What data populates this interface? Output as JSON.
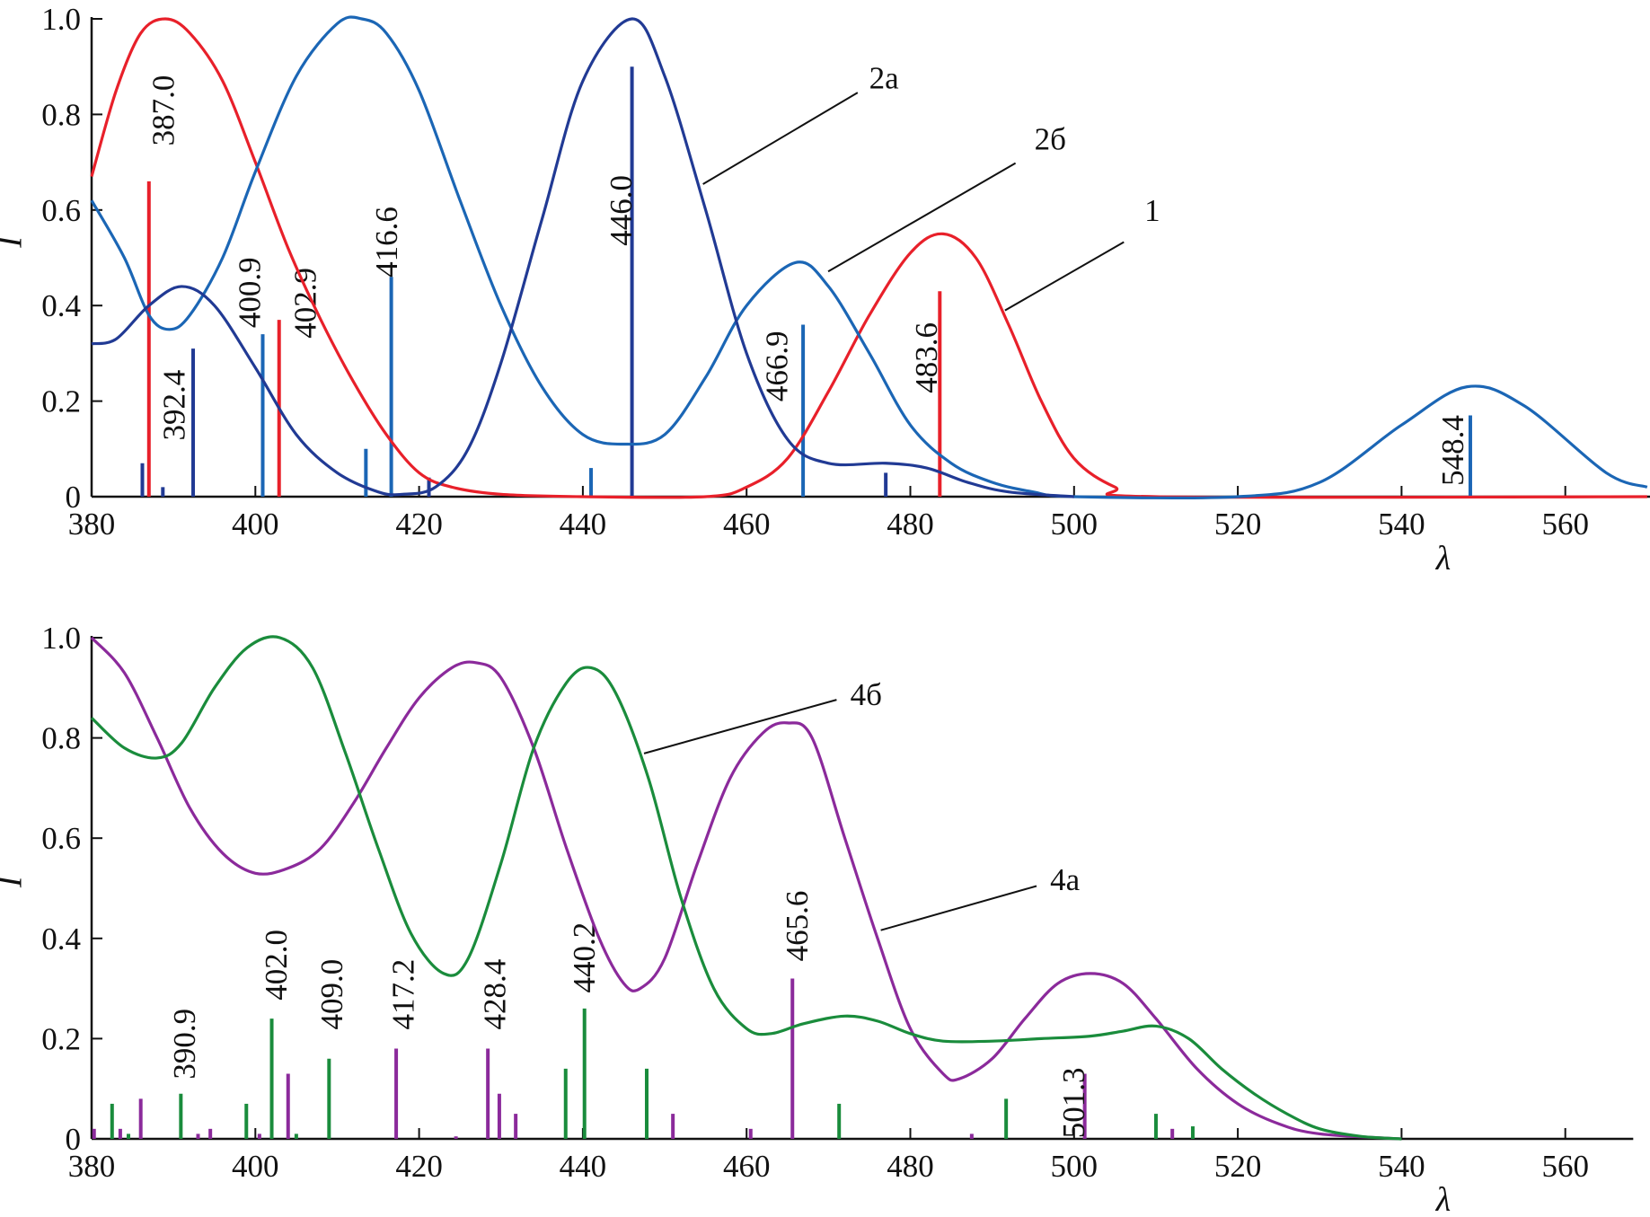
{
  "chart_data": [
    {
      "type": "line",
      "panel": "top",
      "xlabel": "λ",
      "ylabel": "I",
      "xlim": [
        380,
        570
      ],
      "ylim": [
        0,
        1.0
      ],
      "xticks": [
        "380",
        "400",
        "420",
        "440",
        "460",
        "480",
        "500",
        "520",
        "540",
        "560"
      ],
      "yticks": [
        "0",
        "0.2",
        "0.4",
        "0.6",
        "0.8",
        "1.0"
      ],
      "series": [
        {
          "name": "1",
          "color": "#e8202a",
          "x": [
            380,
            383,
            386,
            389,
            392,
            396,
            400,
            404,
            408,
            412,
            416,
            420,
            424,
            430,
            440,
            455,
            460,
            465,
            470,
            475,
            480,
            484,
            488,
            492,
            496,
            500,
            505,
            510,
            570
          ],
          "y": [
            0.67,
            0.85,
            0.97,
            1.0,
            0.97,
            0.87,
            0.7,
            0.52,
            0.37,
            0.24,
            0.13,
            0.05,
            0.02,
            0.005,
            0,
            0,
            0.02,
            0.08,
            0.22,
            0.38,
            0.51,
            0.55,
            0.5,
            0.36,
            0.2,
            0.08,
            0.02,
            0,
            0
          ]
        },
        {
          "name": "2б",
          "color": "#1b66b5",
          "x": [
            380,
            384,
            387,
            389.5,
            392,
            396,
            400,
            405,
            410,
            413,
            416,
            420,
            425,
            430,
            435,
            440,
            445,
            450,
            455,
            460,
            466,
            470,
            475,
            480,
            485,
            490,
            495,
            500,
            520,
            530,
            540,
            548,
            555,
            565,
            570
          ],
          "y": [
            0.62,
            0.5,
            0.38,
            0.35,
            0.38,
            0.5,
            0.68,
            0.88,
            0.99,
            1.0,
            0.97,
            0.85,
            0.62,
            0.4,
            0.23,
            0.13,
            0.11,
            0.13,
            0.25,
            0.4,
            0.49,
            0.44,
            0.3,
            0.15,
            0.07,
            0.03,
            0.01,
            0,
            0,
            0.03,
            0.15,
            0.23,
            0.19,
            0.05,
            0.02
          ]
        },
        {
          "name": "2а",
          "color": "#213a94",
          "x": [
            380,
            383,
            387,
            391,
            395,
            400,
            405,
            410,
            415,
            418,
            422,
            426,
            430,
            435,
            440,
            446,
            450,
            455,
            460,
            465,
            470,
            477,
            482,
            487,
            492,
            500
          ],
          "y": [
            0.32,
            0.33,
            0.4,
            0.44,
            0.4,
            0.27,
            0.13,
            0.05,
            0.01,
            0.005,
            0.02,
            0.1,
            0.28,
            0.58,
            0.87,
            1.0,
            0.88,
            0.6,
            0.3,
            0.12,
            0.07,
            0.07,
            0.06,
            0.03,
            0.01,
            0
          ]
        }
      ],
      "lines": [
        {
          "x": 387.0,
          "y": 0.66,
          "color": "#e8202a",
          "label": "387.0"
        },
        {
          "x": 402.9,
          "y": 0.37,
          "color": "#e8202a",
          "label": "402.9"
        },
        {
          "x": 483.6,
          "y": 0.43,
          "color": "#e8202a",
          "label": "483.6"
        },
        {
          "x": 400.9,
          "y": 0.34,
          "color": "#1b66b5",
          "label": "400.9"
        },
        {
          "x": 416.6,
          "y": 0.46,
          "color": "#1b66b5",
          "label": "416.6"
        },
        {
          "x": 413.5,
          "y": 0.1,
          "color": "#1b66b5",
          "label": ""
        },
        {
          "x": 441.0,
          "y": 0.06,
          "color": "#1b66b5",
          "label": ""
        },
        {
          "x": 466.9,
          "y": 0.36,
          "color": "#1b66b5",
          "label": "466.9"
        },
        {
          "x": 548.4,
          "y": 0.17,
          "color": "#1b66b5",
          "label": "548.4"
        },
        {
          "x": 386.2,
          "y": 0.07,
          "color": "#213a94",
          "label": ""
        },
        {
          "x": 388.7,
          "y": 0.02,
          "color": "#213a94",
          "label": ""
        },
        {
          "x": 392.4,
          "y": 0.31,
          "color": "#213a94",
          "label": "392.4"
        },
        {
          "x": 421.2,
          "y": 0.04,
          "color": "#213a94",
          "label": ""
        },
        {
          "x": 446.0,
          "y": 0.9,
          "color": "#213a94",
          "label": "446.0"
        },
        {
          "x": 477.0,
          "y": 0.05,
          "color": "#213a94",
          "label": ""
        }
      ],
      "annotations": [
        "2а",
        "2б",
        "1"
      ]
    },
    {
      "type": "line",
      "panel": "bottom",
      "xlabel": "λ",
      "ylabel": "I",
      "xlim": [
        380,
        570
      ],
      "ylim": [
        0,
        1.0
      ],
      "xticks": [
        "380",
        "400",
        "420",
        "440",
        "460",
        "480",
        "500",
        "520",
        "540",
        "560"
      ],
      "yticks": [
        "0",
        "0.2",
        "0.4",
        "0.6",
        "0.8",
        "1.0"
      ],
      "series": [
        {
          "name": "4а",
          "color": "#8b2a9b",
          "x": [
            380,
            384,
            388,
            392,
            396,
            400,
            404,
            408,
            412,
            416,
            420,
            424,
            427,
            430,
            434,
            438,
            442,
            445,
            447,
            450,
            454,
            458,
            462,
            465,
            468,
            472,
            476,
            480,
            484,
            486,
            490,
            494,
            498,
            502,
            506,
            510,
            515,
            520,
            525,
            530,
            540
          ],
          "y": [
            1.0,
            0.93,
            0.8,
            0.66,
            0.57,
            0.53,
            0.54,
            0.58,
            0.67,
            0.78,
            0.88,
            0.94,
            0.95,
            0.92,
            0.78,
            0.58,
            0.4,
            0.31,
            0.3,
            0.36,
            0.55,
            0.72,
            0.81,
            0.83,
            0.8,
            0.6,
            0.4,
            0.22,
            0.13,
            0.12,
            0.16,
            0.24,
            0.31,
            0.33,
            0.31,
            0.24,
            0.14,
            0.07,
            0.03,
            0.01,
            0
          ]
        },
        {
          "name": "4б",
          "color": "#1a8c3c",
          "x": [
            380,
            384,
            388,
            391,
            395,
            399,
            403,
            407,
            411,
            415,
            419,
            423,
            426,
            430,
            434,
            438,
            441,
            444,
            448,
            452,
            456,
            460,
            463,
            467,
            472,
            476,
            480,
            484,
            490,
            496,
            502,
            506,
            510,
            514,
            518,
            522,
            526,
            530,
            535,
            540
          ],
          "y": [
            0.84,
            0.78,
            0.76,
            0.79,
            0.9,
            0.98,
            1.0,
            0.94,
            0.77,
            0.58,
            0.41,
            0.33,
            0.36,
            0.55,
            0.78,
            0.91,
            0.94,
            0.89,
            0.72,
            0.48,
            0.3,
            0.22,
            0.21,
            0.23,
            0.245,
            0.235,
            0.21,
            0.195,
            0.195,
            0.2,
            0.205,
            0.215,
            0.225,
            0.2,
            0.14,
            0.09,
            0.05,
            0.02,
            0.005,
            0
          ]
        }
      ],
      "lines": [
        {
          "x": 382.5,
          "y": 0.07,
          "color": "#1a8c3c",
          "label": ""
        },
        {
          "x": 384.5,
          "y": 0.01,
          "color": "#1a8c3c",
          "label": ""
        },
        {
          "x": 390.9,
          "y": 0.09,
          "color": "#1a8c3c",
          "label": "390.9"
        },
        {
          "x": 398.9,
          "y": 0.07,
          "color": "#1a8c3c",
          "label": ""
        },
        {
          "x": 402.0,
          "y": 0.24,
          "color": "#1a8c3c",
          "label": "402.0"
        },
        {
          "x": 405.0,
          "y": 0.01,
          "color": "#1a8c3c",
          "label": ""
        },
        {
          "x": 409.0,
          "y": 0.16,
          "color": "#1a8c3c",
          "label": "409.0"
        },
        {
          "x": 437.9,
          "y": 0.14,
          "color": "#1a8c3c",
          "label": ""
        },
        {
          "x": 440.2,
          "y": 0.26,
          "color": "#1a8c3c",
          "label": "440.2"
        },
        {
          "x": 447.8,
          "y": 0.14,
          "color": "#1a8c3c",
          "label": ""
        },
        {
          "x": 471.3,
          "y": 0.07,
          "color": "#1a8c3c",
          "label": ""
        },
        {
          "x": 491.7,
          "y": 0.08,
          "color": "#1a8c3c",
          "label": ""
        },
        {
          "x": 510.0,
          "y": 0.05,
          "color": "#1a8c3c",
          "label": ""
        },
        {
          "x": 514.5,
          "y": 0.025,
          "color": "#1a8c3c",
          "label": ""
        },
        {
          "x": 380.3,
          "y": 0.02,
          "color": "#8b2a9b",
          "label": ""
        },
        {
          "x": 383.5,
          "y": 0.02,
          "color": "#8b2a9b",
          "label": ""
        },
        {
          "x": 386.0,
          "y": 0.08,
          "color": "#8b2a9b",
          "label": ""
        },
        {
          "x": 393.0,
          "y": 0.01,
          "color": "#8b2a9b",
          "label": ""
        },
        {
          "x": 394.5,
          "y": 0.02,
          "color": "#8b2a9b",
          "label": ""
        },
        {
          "x": 400.5,
          "y": 0.01,
          "color": "#8b2a9b",
          "label": ""
        },
        {
          "x": 404.0,
          "y": 0.13,
          "color": "#8b2a9b",
          "label": ""
        },
        {
          "x": 417.2,
          "y": 0.18,
          "color": "#8b2a9b",
          "label": "417.2"
        },
        {
          "x": 424.5,
          "y": 0.005,
          "color": "#8b2a9b",
          "label": ""
        },
        {
          "x": 428.4,
          "y": 0.18,
          "color": "#8b2a9b",
          "label": "428.4"
        },
        {
          "x": 429.8,
          "y": 0.09,
          "color": "#8b2a9b",
          "label": ""
        },
        {
          "x": 431.8,
          "y": 0.05,
          "color": "#8b2a9b",
          "label": ""
        },
        {
          "x": 451.0,
          "y": 0.05,
          "color": "#8b2a9b",
          "label": ""
        },
        {
          "x": 460.5,
          "y": 0.02,
          "color": "#8b2a9b",
          "label": ""
        },
        {
          "x": 465.6,
          "y": 0.32,
          "color": "#8b2a9b",
          "label": "465.6"
        },
        {
          "x": 487.5,
          "y": 0.01,
          "color": "#8b2a9b",
          "label": ""
        },
        {
          "x": 501.3,
          "y": 0.13,
          "color": "#8b2a9b",
          "label": "501.3"
        },
        {
          "x": 512.0,
          "y": 0.02,
          "color": "#8b2a9b",
          "label": ""
        }
      ],
      "annotations": [
        "4б",
        "4а"
      ]
    }
  ]
}
